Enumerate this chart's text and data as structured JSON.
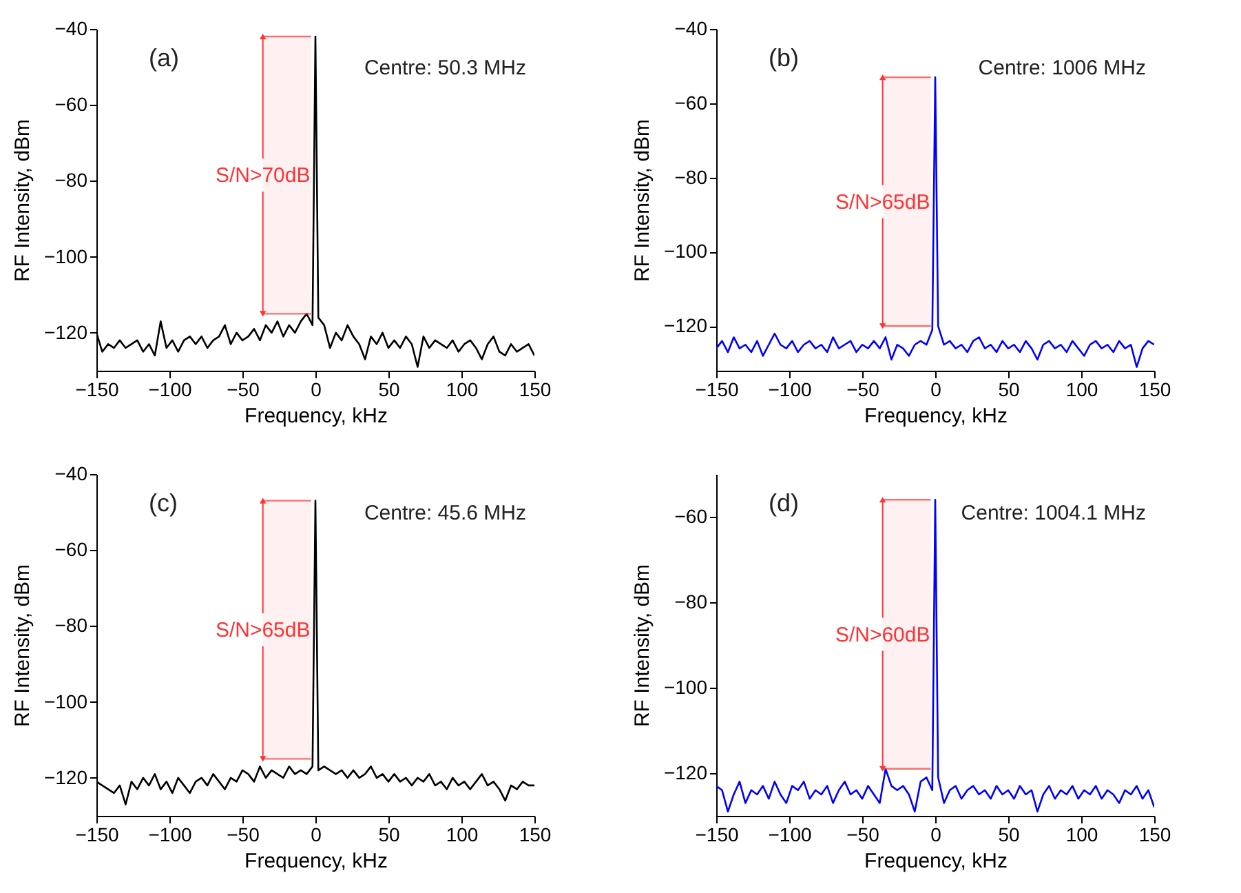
{
  "chart_data": [
    {
      "type": "line",
      "xlabel": "Frequency, kHz",
      "ylabel": "RF Intensity, dBm",
      "xlim": [
        -150,
        150
      ],
      "xticks": [
        -150,
        -100,
        -50,
        0,
        50,
        100,
        150
      ],
      "ylim": [
        -130,
        -40
      ],
      "yticks": [
        -120,
        -100,
        -80,
        -60,
        -40
      ],
      "annotations": [
        "(a)",
        "Centre: 50.3 MHz"
      ],
      "bands": [
        {
          "axis": "y",
          "from": -115,
          "to": -42,
          "label": "S/N>70dB",
          "color": "#ff3333"
        }
      ],
      "x": [
        -150,
        -146,
        -142,
        -138,
        -134,
        -130,
        -126,
        -122,
        -118,
        -114,
        -110,
        -106,
        -102,
        -98,
        -94,
        -90,
        -86,
        -82,
        -78,
        -74,
        -70,
        -66,
        -62,
        -58,
        -54,
        -50,
        -46,
        -42,
        -38,
        -34,
        -30,
        -26,
        -22,
        -18,
        -14,
        -10,
        -6,
        -2,
        0,
        2,
        6,
        10,
        14,
        18,
        22,
        26,
        30,
        34,
        38,
        42,
        46,
        50,
        54,
        58,
        62,
        66,
        70,
        74,
        78,
        82,
        86,
        90,
        94,
        98,
        102,
        106,
        110,
        114,
        118,
        122,
        126,
        130,
        134,
        138,
        142,
        146,
        150
      ],
      "series": [
        {
          "color": "#000000",
          "values": [
            -120,
            -125,
            -123,
            -124,
            -122,
            -124,
            -123,
            -122,
            -125,
            -123,
            -126,
            -117,
            -124,
            -122,
            -125,
            -122,
            -121,
            -123,
            -121,
            -124,
            -122,
            -121,
            -118,
            -123,
            -120,
            -122,
            -121,
            -119,
            -122,
            -118,
            -120,
            -117,
            -121,
            -118,
            -120,
            -117,
            -115,
            -118,
            -42,
            -116,
            -118,
            -124,
            -120,
            -122,
            -118,
            -121,
            -123,
            -127,
            -121,
            -123,
            -120,
            -124,
            -122,
            -124,
            -121,
            -123,
            -129,
            -121,
            -124,
            -122,
            -123,
            -124,
            -122,
            -125,
            -123,
            -122,
            -124,
            -127,
            -123,
            -121,
            -125,
            -126,
            -123,
            -125,
            -124,
            -123,
            -126
          ]
        }
      ]
    },
    {
      "type": "line",
      "xlabel": "Frequency, kHz",
      "ylabel": "RF Intensity, dBm",
      "xlim": [
        -150,
        150
      ],
      "xticks": [
        -150,
        -100,
        -50,
        0,
        50,
        100,
        150
      ],
      "ylim": [
        -132,
        -40
      ],
      "yticks": [
        -120,
        -100,
        -80,
        -60,
        -40
      ],
      "annotations": [
        "(b)",
        "Centre: 1006 MHz"
      ],
      "bands": [
        {
          "axis": "y",
          "from": -120,
          "to": -53,
          "label": "S/N>65dB",
          "color": "#ff3333"
        }
      ],
      "x": [
        -150,
        -146,
        -142,
        -138,
        -134,
        -130,
        -126,
        -122,
        -118,
        -114,
        -110,
        -106,
        -102,
        -98,
        -94,
        -90,
        -86,
        -82,
        -78,
        -74,
        -70,
        -66,
        -62,
        -58,
        -54,
        -50,
        -46,
        -42,
        -38,
        -34,
        -30,
        -26,
        -22,
        -18,
        -14,
        -10,
        -6,
        -2,
        0,
        2,
        6,
        10,
        14,
        18,
        22,
        26,
        30,
        34,
        38,
        42,
        46,
        50,
        54,
        58,
        62,
        66,
        70,
        74,
        78,
        82,
        86,
        90,
        94,
        98,
        102,
        106,
        110,
        114,
        118,
        122,
        126,
        130,
        134,
        138,
        142,
        146,
        150
      ],
      "series": [
        {
          "color": "#0000ff",
          "values": [
            -126,
            -124,
            -127,
            -123,
            -126,
            -125,
            -127,
            -124,
            -128,
            -125,
            -122,
            -125,
            -126,
            -124,
            -127,
            -125,
            -124,
            -126,
            -125,
            -127,
            -123,
            -126,
            -125,
            -124,
            -127,
            -125,
            -126,
            -124,
            -126,
            -123,
            -129,
            -125,
            -126,
            -128,
            -125,
            -124,
            -125,
            -121,
            -53,
            -120,
            -125,
            -124,
            -126,
            -125,
            -127,
            -124,
            -123,
            -126,
            -125,
            -127,
            -124,
            -126,
            -125,
            -127,
            -124,
            -126,
            -129,
            -125,
            -124,
            -126,
            -125,
            -127,
            -124,
            -126,
            -128,
            -125,
            -124,
            -126,
            -125,
            -127,
            -124,
            -126,
            -125,
            -131,
            -126,
            -124,
            -125
          ]
        }
      ]
    },
    {
      "type": "line",
      "xlabel": "Frequency, kHz",
      "ylabel": "RF Intensity, dBm",
      "xlim": [
        -150,
        150
      ],
      "xticks": [
        -150,
        -100,
        -50,
        0,
        50,
        100,
        150
      ],
      "ylim": [
        -130,
        -40
      ],
      "yticks": [
        -120,
        -100,
        -80,
        -60,
        -40
      ],
      "annotations": [
        "(c)",
        "Centre: 45.6 MHz"
      ],
      "bands": [
        {
          "axis": "y",
          "from": -115,
          "to": -47,
          "label": "S/N>65dB",
          "color": "#ff3333"
        }
      ],
      "x": [
        -150,
        -146,
        -142,
        -138,
        -134,
        -130,
        -126,
        -122,
        -118,
        -114,
        -110,
        -106,
        -102,
        -98,
        -94,
        -90,
        -86,
        -82,
        -78,
        -74,
        -70,
        -66,
        -62,
        -58,
        -54,
        -50,
        -46,
        -42,
        -38,
        -34,
        -30,
        -26,
        -22,
        -18,
        -14,
        -10,
        -6,
        -2,
        0,
        2,
        6,
        10,
        14,
        18,
        22,
        26,
        30,
        34,
        38,
        42,
        46,
        50,
        54,
        58,
        62,
        66,
        70,
        74,
        78,
        82,
        86,
        90,
        94,
        98,
        102,
        106,
        110,
        114,
        118,
        122,
        126,
        130,
        134,
        138,
        142,
        146,
        150
      ],
      "series": [
        {
          "color": "#000000",
          "values": [
            -121,
            -122,
            -123,
            -124,
            -122,
            -127,
            -121,
            -123,
            -120,
            -122,
            -119,
            -123,
            -121,
            -124,
            -120,
            -122,
            -124,
            -121,
            -120,
            -122,
            -119,
            -121,
            -123,
            -120,
            -121,
            -118,
            -119,
            -121,
            -117,
            -120,
            -118,
            -119,
            -120,
            -117,
            -119,
            -118,
            -119,
            -117,
            -47,
            -118,
            -117,
            -118,
            -119,
            -118,
            -120,
            -118,
            -120,
            -119,
            -117,
            -120,
            -119,
            -121,
            -119,
            -121,
            -120,
            -122,
            -120,
            -121,
            -119,
            -122,
            -121,
            -123,
            -120,
            -122,
            -121,
            -123,
            -121,
            -119,
            -122,
            -121,
            -123,
            -126,
            -122,
            -123,
            -121,
            -122,
            -122
          ]
        }
      ]
    },
    {
      "type": "line",
      "xlabel": "Frequency, kHz",
      "ylabel": "RF Intensity, dBm",
      "xlim": [
        -150,
        150
      ],
      "xticks": [
        -150,
        -100,
        -50,
        0,
        50,
        100,
        150
      ],
      "ylim": [
        -130,
        -50
      ],
      "yticks": [
        -120,
        -100,
        -80,
        -60
      ],
      "annotations": [
        "(d)",
        "Centre: 1004.1 MHz"
      ],
      "bands": [
        {
          "axis": "y",
          "from": -119,
          "to": -56,
          "label": "S/N>60dB",
          "color": "#ff3333"
        }
      ],
      "x": [
        -150,
        -146,
        -142,
        -138,
        -134,
        -130,
        -126,
        -122,
        -118,
        -114,
        -110,
        -106,
        -102,
        -98,
        -94,
        -90,
        -86,
        -82,
        -78,
        -74,
        -70,
        -66,
        -62,
        -58,
        -54,
        -50,
        -46,
        -42,
        -38,
        -34,
        -30,
        -26,
        -22,
        -18,
        -14,
        -10,
        -6,
        -2,
        0,
        2,
        6,
        10,
        14,
        18,
        22,
        26,
        30,
        34,
        38,
        42,
        46,
        50,
        54,
        58,
        62,
        66,
        70,
        74,
        78,
        82,
        86,
        90,
        94,
        98,
        102,
        106,
        110,
        114,
        118,
        122,
        126,
        130,
        134,
        138,
        142,
        146,
        150
      ],
      "series": [
        {
          "color": "#0000ff",
          "values": [
            -123,
            -124,
            -129,
            -125,
            -122,
            -127,
            -124,
            -125,
            -123,
            -126,
            -122,
            -125,
            -127,
            -123,
            -124,
            -122,
            -126,
            -124,
            -125,
            -123,
            -127,
            -124,
            -122,
            -125,
            -124,
            -126,
            -123,
            -125,
            -127,
            -119,
            -123,
            -124,
            -123,
            -125,
            -129,
            -122,
            -121,
            -124,
            -56,
            -121,
            -127,
            -124,
            -123,
            -126,
            -124,
            -123,
            -125,
            -124,
            -126,
            -123,
            -125,
            -124,
            -126,
            -123,
            -125,
            -124,
            -129,
            -125,
            -123,
            -126,
            -124,
            -125,
            -123,
            -126,
            -124,
            -125,
            -123,
            -126,
            -124,
            -125,
            -127,
            -124,
            -125,
            -123,
            -126,
            -124,
            -128
          ]
        }
      ]
    }
  ]
}
